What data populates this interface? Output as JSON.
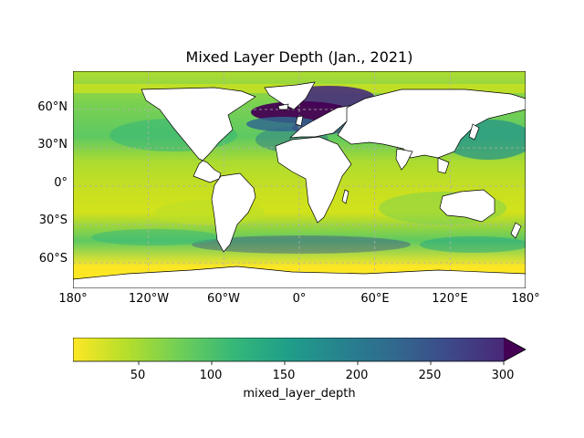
{
  "title": "Mixed Layer Depth (Jan., 2021)",
  "map": {
    "projection": "PlateCarree",
    "extent_lon": [
      -180,
      180
    ],
    "extent_lat": [
      -80,
      90
    ],
    "gridlines": "dashed",
    "lon_labels": [
      "180°",
      "120°W",
      "60°W",
      "0°",
      "60°E",
      "120°E",
      "180°"
    ],
    "lat_labels": [
      "60°N",
      "30°N",
      "0°",
      "30°S",
      "60°S"
    ]
  },
  "colorbar": {
    "colormap": "viridis",
    "reversed": true,
    "ticks": [
      "50",
      "100",
      "150",
      "200",
      "250",
      "300"
    ],
    "range": [
      5,
      300
    ],
    "extend": "max",
    "label": "mixed_layer_depth"
  },
  "colors": {
    "land": "#ffffff",
    "coast": "#000000",
    "grid": "#b0b0b0",
    "deep": "#440154",
    "shallow": "#fde725"
  }
}
